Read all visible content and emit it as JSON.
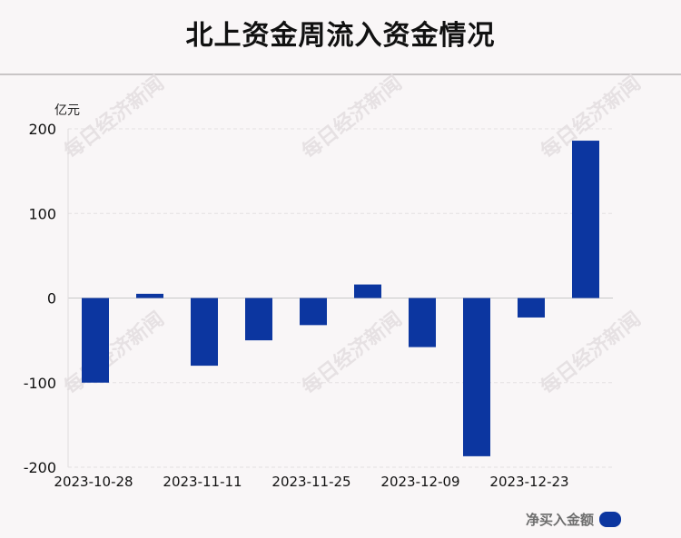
{
  "title": "北上资金周流入资金情况",
  "watermark": "每日经济新闻",
  "chart_data": {
    "type": "bar",
    "unit_label": "亿元",
    "x_tick_labels": [
      "2023-10-28",
      "2023-11-11",
      "2023-11-25",
      "2023-12-09",
      "2023-12-23"
    ],
    "y_ticks": [
      200,
      100,
      0,
      -100,
      -200
    ],
    "ylim": [
      -200,
      200
    ],
    "grid": true,
    "series": [
      {
        "name": "净买入金额",
        "color": "#0c36a0",
        "values": [
          -100,
          5,
          -80,
          -50,
          -32,
          16,
          -58,
          -187,
          -23,
          186
        ]
      }
    ],
    "legend_position": "bottom-right"
  }
}
